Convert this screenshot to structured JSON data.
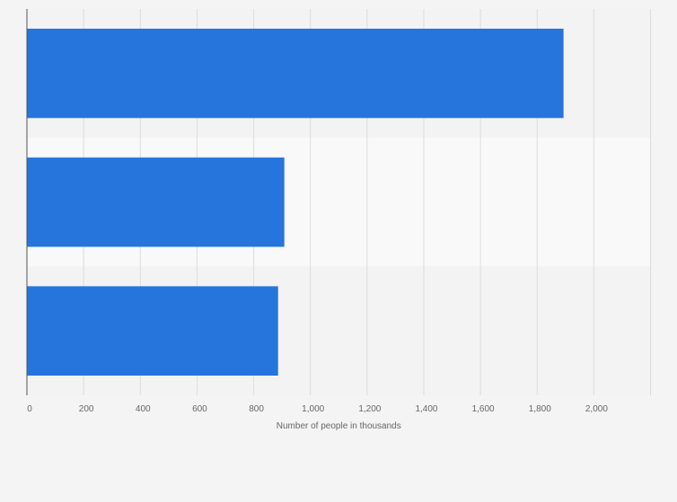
{
  "colors": {
    "background": "#f4f4f4",
    "band_light": "#f9f9f9",
    "band_dark": "#f3f3f3",
    "bar": "#2575dc",
    "grid": "#dcdcdc",
    "axis": "#555555",
    "text": "#666666"
  },
  "chart_data": {
    "type": "bar",
    "orientation": "horizontal",
    "categories": [
      "",
      "",
      ""
    ],
    "values": [
      1893,
      908,
      886
    ],
    "title": "",
    "xlabel": "Number of people in thousands",
    "ylabel": "",
    "xlim": [
      0,
      2200
    ],
    "x_ticks": [
      0,
      200,
      400,
      600,
      800,
      1000,
      1200,
      1400,
      1600,
      1800,
      2000
    ],
    "x_tick_labels": [
      "0",
      "200",
      "400",
      "600",
      "800",
      "1,000",
      "1,200",
      "1,400",
      "1,600",
      "1,800",
      "2,000"
    ],
    "grid": true,
    "legend": "none"
  }
}
